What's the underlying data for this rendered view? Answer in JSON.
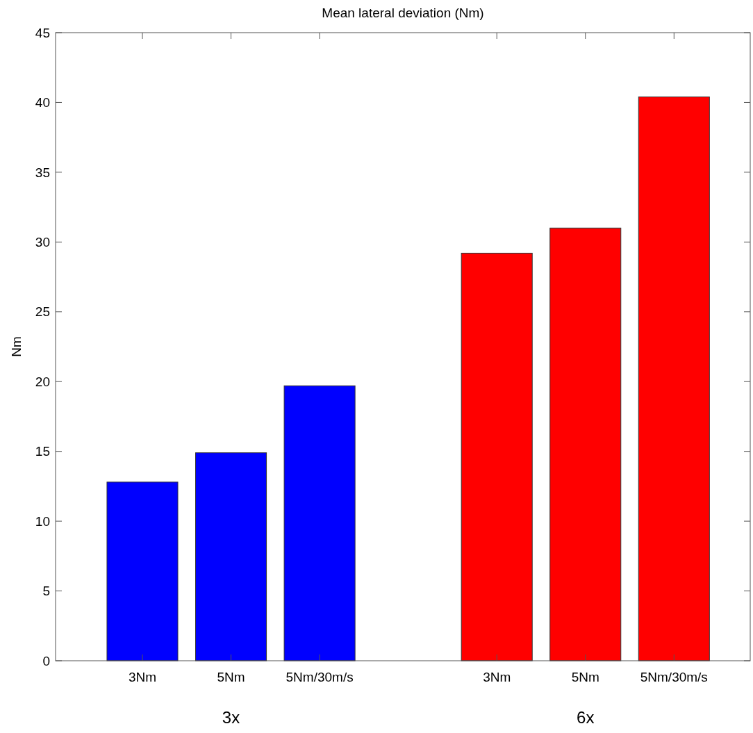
{
  "chart_data": {
    "type": "bar",
    "title": "Mean lateral deviation (Nm)",
    "ylabel": "Nm",
    "categories": [
      "3Nm",
      "5Nm",
      "5Nm/30m/s",
      null,
      "3Nm",
      "5Nm",
      "5Nm/30m/s"
    ],
    "values": [
      12.8,
      14.9,
      19.7,
      null,
      29.2,
      31.0,
      40.4
    ],
    "colors": [
      "#0000ff",
      "#0000ff",
      "#0000ff",
      null,
      "#ff0000",
      "#ff0000",
      "#ff0000"
    ],
    "ylim": [
      0,
      45
    ],
    "yticks": [
      0,
      5,
      10,
      15,
      20,
      25,
      30,
      35,
      40,
      45
    ],
    "grid": false,
    "annotations": [
      "3x",
      "6x"
    ]
  }
}
